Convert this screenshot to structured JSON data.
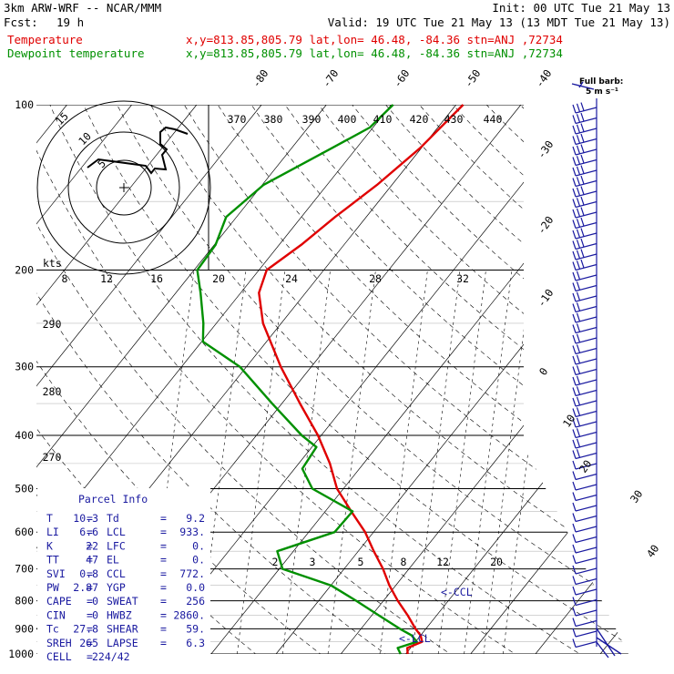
{
  "header": {
    "model": "3km ARW-WRF -- NCAR/MMM",
    "init": "Init: 00 UTC Tue 21 May 13",
    "fcst_label": "Fcst:",
    "fcst_value": "19 h",
    "valid": "Valid: 19 UTC Tue 21 May 13 (13 MDT Tue 21 May 13)",
    "temp_label": "Temperature",
    "dew_label": "Dewpoint temperature",
    "location": "x,y=813.85,805.79  lat,lon= 46.48, -84.36  stn=ANJ ,72734"
  },
  "barb_legend": {
    "title": "Full barb:",
    "value": "5 m s⁻¹"
  },
  "hodograph": {
    "units": "kts",
    "ring_labels": [
      "5",
      "10",
      "15"
    ]
  },
  "parcel_info": {
    "title": "Parcel Info",
    "rows": [
      [
        "T",
        "=",
        "10.3",
        "Td",
        "=",
        "9.2"
      ],
      [
        "LI",
        "=",
        "6.6",
        "LCL",
        "=",
        "933."
      ],
      [
        "K",
        "=",
        "22",
        "LFC",
        "=",
        "0."
      ],
      [
        "TT",
        "=",
        "47",
        "EL",
        "=",
        "0."
      ],
      [
        "SVI",
        "=",
        "0.8",
        "CCL",
        "=",
        "772."
      ],
      [
        "PW",
        "=",
        "2.87",
        "YGP",
        "=",
        "0.0"
      ],
      [
        "CAPE",
        "=",
        "0",
        "SWEAT",
        "=",
        "256"
      ],
      [
        "CIN",
        "=",
        "0",
        "HWBZ",
        "=",
        "2860."
      ],
      [
        "Tc",
        "=",
        "27.8",
        "SHEAR",
        "=",
        "59."
      ],
      [
        "SREH",
        "=",
        "265",
        "LAPSE",
        "=",
        "6.3"
      ],
      [
        "CELL",
        "=",
        "224/42",
        "",
        "",
        ""
      ]
    ]
  },
  "level_markers": {
    "ccl": "CCL",
    "lcl": "LCL"
  },
  "colors": {
    "temperature": "#e00000",
    "dewpoint": "#009000",
    "isobars": "#000000",
    "parcel_text": "#1a1aa0"
  },
  "chart_data": {
    "type": "line",
    "subtype": "skew-T log-P",
    "pressure_levels": [
      100,
      200,
      300,
      400,
      500,
      600,
      700,
      800,
      900,
      1000
    ],
    "pressure_labels": [
      "100",
      "200",
      "300",
      "400",
      "500",
      "600",
      "700",
      "800",
      "900",
      "1000"
    ],
    "isotherm_labels": [
      "-80",
      "-70",
      "-60",
      "-50",
      "-40",
      "-30",
      "-20",
      "-10",
      "0",
      "10",
      "20",
      "30",
      "40"
    ],
    "theta_labels_top": [
      "370",
      "380",
      "390",
      "400",
      "410",
      "420",
      "430",
      "440"
    ],
    "theta_labels_left": [
      "290",
      "280",
      "270"
    ],
    "mixing_ratio_labels_top": [
      "8",
      "12",
      "16",
      "20",
      "24",
      "28",
      "32"
    ],
    "mixing_ratio_labels_low": [
      "2",
      "3",
      "5",
      "8",
      "12",
      "20"
    ],
    "series": [
      {
        "name": "Temperature",
        "color": "#e00000",
        "points": [
          [
            1000,
            10.3
          ],
          [
            975,
            9.5
          ],
          [
            950,
            11.0
          ],
          [
            925,
            10.0
          ],
          [
            900,
            8.4
          ],
          [
            850,
            5.5
          ],
          [
            800,
            2.2
          ],
          [
            750,
            -1.0
          ],
          [
            700,
            -4.0
          ],
          [
            650,
            -7.6
          ],
          [
            600,
            -11.3
          ],
          [
            550,
            -16.0
          ],
          [
            500,
            -21.0
          ],
          [
            450,
            -25.2
          ],
          [
            400,
            -30.5
          ],
          [
            350,
            -37.2
          ],
          [
            300,
            -44.7
          ],
          [
            250,
            -52.8
          ],
          [
            220,
            -57.2
          ],
          [
            200,
            -58.8
          ],
          [
            180,
            -56.6
          ],
          [
            160,
            -54.8
          ],
          [
            140,
            -52.3
          ],
          [
            120,
            -50.2
          ],
          [
            100,
            -48.9
          ]
        ]
      },
      {
        "name": "Dewpoint temperature",
        "color": "#009000",
        "points": [
          [
            1000,
            9.2
          ],
          [
            975,
            8.0
          ],
          [
            950,
            10.2
          ],
          [
            925,
            8.6
          ],
          [
            900,
            6.0
          ],
          [
            850,
            1.0
          ],
          [
            800,
            -4.2
          ],
          [
            750,
            -10.0
          ],
          [
            700,
            -19.5
          ],
          [
            650,
            -22.5
          ],
          [
            600,
            -16.0
          ],
          [
            550,
            -15.8
          ],
          [
            500,
            -24.8
          ],
          [
            460,
            -28.8
          ],
          [
            420,
            -29.3
          ],
          [
            400,
            -33.0
          ],
          [
            350,
            -41.5
          ],
          [
            300,
            -51.0
          ],
          [
            270,
            -59.8
          ],
          [
            250,
            -62.0
          ],
          [
            220,
            -66.2
          ],
          [
            200,
            -69.5
          ],
          [
            180,
            -69.8
          ],
          [
            160,
            -71.6
          ],
          [
            140,
            -69.8
          ],
          [
            120,
            -63.8
          ],
          [
            110,
            -60.5
          ],
          [
            100,
            -59.7
          ]
        ]
      }
    ],
    "wind_barbs_visible": true
  }
}
